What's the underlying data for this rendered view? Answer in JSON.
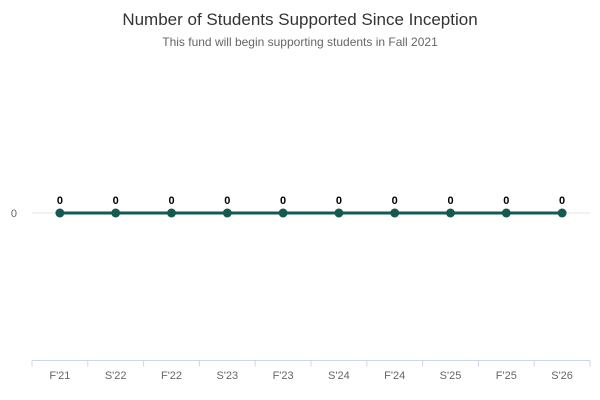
{
  "chart_data": {
    "type": "line",
    "title": "Number of Students Supported Since Inception",
    "subtitle": "This fund will begin supporting students in Fall 2021",
    "categories": [
      "F'21",
      "S'22",
      "F'22",
      "S'23",
      "F'23",
      "S'24",
      "F'24",
      "S'25",
      "F'25",
      "S'26"
    ],
    "values": [
      0,
      0,
      0,
      0,
      0,
      0,
      0,
      0,
      0,
      0
    ],
    "data_labels_shown": true,
    "y_ticks": [
      "0"
    ],
    "xlabel": "",
    "ylabel": "",
    "legend": "none",
    "grid": "zero-line-only",
    "colors": {
      "series": "#165951",
      "marker": "#165951",
      "axis_line": "#ccd6eb",
      "grid_line": "#e6e6e6",
      "axis_label": "#666666",
      "data_label": "#000000",
      "title": "#333333",
      "subtitle": "#666666"
    }
  }
}
